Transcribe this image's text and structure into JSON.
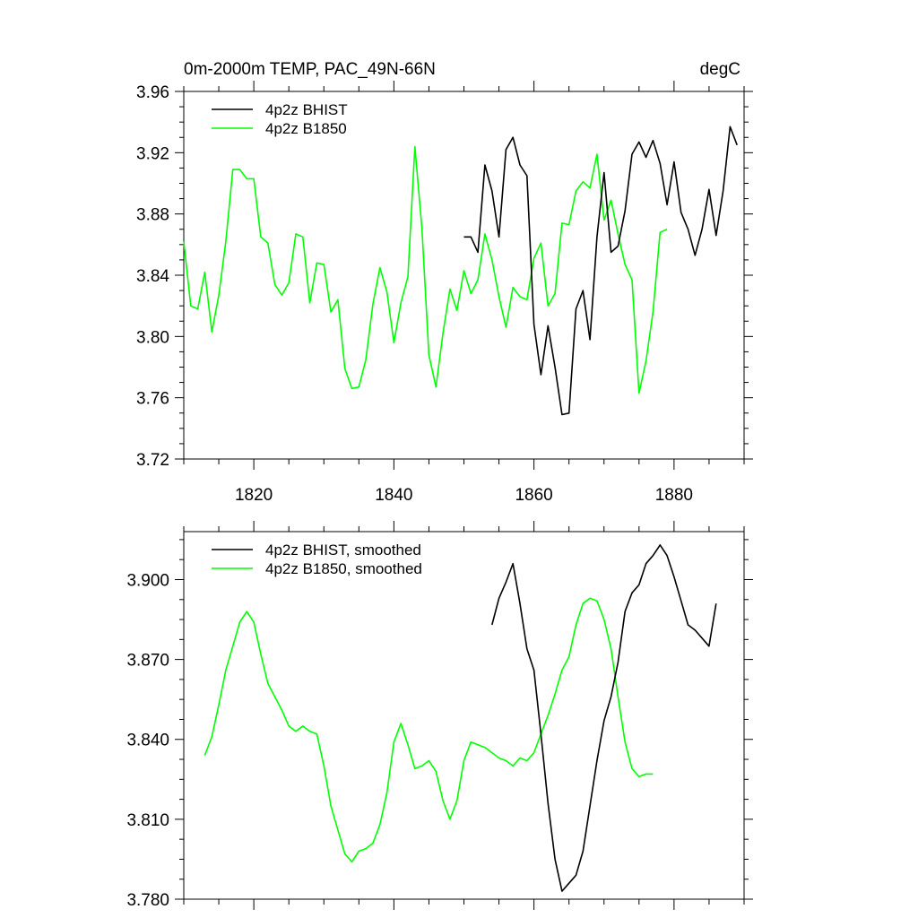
{
  "chart_data": [
    {
      "type": "line",
      "title": "0m-2000m TEMP, PAC_49N-66N",
      "units": "degC",
      "xlim": [
        1810,
        1890
      ],
      "ylim": [
        3.72,
        3.96
      ],
      "xticks": [
        1820,
        1840,
        1860,
        1880
      ],
      "yticks": [
        3.72,
        3.76,
        3.8,
        3.84,
        3.88,
        3.92,
        3.96
      ],
      "ytick_decimals": 2,
      "legend_position": "top-left",
      "series": [
        {
          "name": "4p2z BHIST",
          "color": "#000000",
          "x": [
            1850,
            1851,
            1852,
            1853,
            1854,
            1855,
            1856,
            1857,
            1858,
            1859,
            1860,
            1861,
            1862,
            1863,
            1864,
            1865,
            1866,
            1867,
            1868,
            1869,
            1870,
            1871,
            1872,
            1873,
            1874,
            1875,
            1876,
            1877,
            1878,
            1879,
            1880,
            1881,
            1882,
            1883,
            1884,
            1885,
            1886,
            1887,
            1888,
            1889
          ],
          "values": [
            3.865,
            3.865,
            3.855,
            3.912,
            3.895,
            3.865,
            3.922,
            3.93,
            3.912,
            3.905,
            3.808,
            3.775,
            3.807,
            3.78,
            3.749,
            3.75,
            3.818,
            3.83,
            3.798,
            3.865,
            3.907,
            3.855,
            3.859,
            3.882,
            3.919,
            3.927,
            3.917,
            3.928,
            3.913,
            3.886,
            3.914,
            3.881,
            3.87,
            3.853,
            3.87,
            3.896,
            3.866,
            3.895,
            3.937,
            3.925
          ]
        },
        {
          "name": "4p2z B1850",
          "color": "#00ff00",
          "x": [
            1810,
            1811,
            1812,
            1813,
            1814,
            1815,
            1816,
            1817,
            1818,
            1819,
            1820,
            1821,
            1822,
            1823,
            1824,
            1825,
            1826,
            1827,
            1828,
            1829,
            1830,
            1831,
            1832,
            1833,
            1834,
            1835,
            1836,
            1837,
            1838,
            1839,
            1840,
            1841,
            1842,
            1843,
            1844,
            1845,
            1846,
            1847,
            1848,
            1849,
            1850,
            1851,
            1852,
            1853,
            1854,
            1855,
            1856,
            1857,
            1858,
            1859,
            1860,
            1861,
            1862,
            1863,
            1864,
            1865,
            1866,
            1867,
            1868,
            1869,
            1870,
            1871,
            1872,
            1873,
            1874,
            1875,
            1876,
            1877,
            1878,
            1879
          ],
          "values": [
            3.862,
            3.82,
            3.818,
            3.842,
            3.803,
            3.827,
            3.862,
            3.909,
            3.909,
            3.903,
            3.903,
            3.865,
            3.861,
            3.834,
            3.827,
            3.835,
            3.867,
            3.865,
            3.822,
            3.848,
            3.847,
            3.816,
            3.824,
            3.779,
            3.766,
            3.767,
            3.785,
            3.821,
            3.845,
            3.829,
            3.796,
            3.822,
            3.839,
            3.924,
            3.871,
            3.788,
            3.767,
            3.802,
            3.831,
            3.817,
            3.843,
            3.828,
            3.837,
            3.867,
            3.85,
            3.826,
            3.806,
            3.832,
            3.826,
            3.824,
            3.851,
            3.861,
            3.82,
            3.828,
            3.874,
            3.873,
            3.895,
            3.901,
            3.897,
            3.919,
            3.876,
            3.889,
            3.867,
            3.847,
            3.837,
            3.763,
            3.784,
            3.816,
            3.868,
            3.87
          ]
        }
      ]
    },
    {
      "type": "line",
      "title": "",
      "xlim": [
        1810,
        1890
      ],
      "ylim": [
        3.78,
        3.918
      ],
      "xticks": [
        1820,
        1840,
        1860,
        1880
      ],
      "yticks": [
        3.78,
        3.81,
        3.84,
        3.87,
        3.9
      ],
      "ytick_decimals": 3,
      "legend_position": "top-left",
      "series": [
        {
          "name": "4p2z BHIST, smoothed",
          "color": "#000000",
          "x": [
            1854,
            1855,
            1856,
            1857,
            1858,
            1859,
            1860,
            1861,
            1862,
            1863,
            1864,
            1865,
            1866,
            1867,
            1868,
            1869,
            1870,
            1871,
            1872,
            1873,
            1874,
            1875,
            1876,
            1877,
            1878,
            1879,
            1880,
            1881,
            1882,
            1883,
            1884,
            1885,
            1886
          ],
          "values": [
            3.883,
            3.893,
            3.899,
            3.906,
            3.891,
            3.874,
            3.866,
            3.842,
            3.816,
            3.795,
            3.783,
            3.786,
            3.789,
            3.798,
            3.815,
            3.832,
            3.847,
            3.856,
            3.869,
            3.888,
            3.895,
            3.898,
            3.906,
            3.909,
            3.913,
            3.909,
            3.901,
            3.892,
            3.883,
            3.881,
            3.878,
            3.875,
            3.891
          ]
        },
        {
          "name": "4p2z B1850, smoothed",
          "color": "#00ff00",
          "x": [
            1813,
            1814,
            1815,
            1816,
            1817,
            1818,
            1819,
            1820,
            1821,
            1822,
            1823,
            1824,
            1825,
            1826,
            1827,
            1828,
            1829,
            1830,
            1831,
            1832,
            1833,
            1834,
            1835,
            1836,
            1837,
            1838,
            1839,
            1840,
            1841,
            1842,
            1843,
            1844,
            1845,
            1846,
            1847,
            1848,
            1849,
            1850,
            1851,
            1852,
            1853,
            1854,
            1855,
            1856,
            1857,
            1858,
            1859,
            1860,
            1861,
            1862,
            1863,
            1864,
            1865,
            1866,
            1867,
            1868,
            1869,
            1870,
            1871,
            1872,
            1873,
            1874,
            1875,
            1876,
            1877
          ],
          "values": [
            3.834,
            3.841,
            3.853,
            3.866,
            3.875,
            3.884,
            3.888,
            3.884,
            3.872,
            3.861,
            3.856,
            3.851,
            3.845,
            3.843,
            3.845,
            3.843,
            3.842,
            3.83,
            3.815,
            3.806,
            3.797,
            3.794,
            3.798,
            3.799,
            3.801,
            3.808,
            3.82,
            3.839,
            3.846,
            3.838,
            3.829,
            3.83,
            3.832,
            3.828,
            3.817,
            3.81,
            3.817,
            3.832,
            3.839,
            3.838,
            3.837,
            3.835,
            3.833,
            3.832,
            3.83,
            3.833,
            3.832,
            3.835,
            3.842,
            3.849,
            3.857,
            3.866,
            3.871,
            3.883,
            3.891,
            3.893,
            3.892,
            3.885,
            3.874,
            3.856,
            3.839,
            3.829,
            3.826,
            3.827,
            3.827
          ]
        }
      ]
    }
  ]
}
